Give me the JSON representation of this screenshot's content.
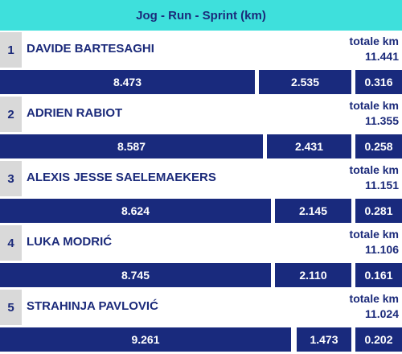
{
  "header": {
    "title": "Jog - Run - Sprint (km)"
  },
  "total_label": "totale km",
  "players": [
    {
      "rank": "1",
      "name": "DAVIDE BARTESAGHI",
      "total": "11.441",
      "jog": "8.473",
      "run": "2.535",
      "sprint": "0.316"
    },
    {
      "rank": "2",
      "name": "ADRIEN RABIOT",
      "total": "11.355",
      "jog": "8.587",
      "run": "2.431",
      "sprint": "0.258"
    },
    {
      "rank": "3",
      "name": "ALEXIS JESSE SAELEMAEKERS",
      "total": "11.151",
      "jog": "8.624",
      "run": "2.145",
      "sprint": "0.281"
    },
    {
      "rank": "4",
      "name": "LUKA MODRIĆ",
      "total": "11.106",
      "jog": "8.745",
      "run": "2.110",
      "sprint": "0.161"
    },
    {
      "rank": "5",
      "name": "STRAHINJA PAVLOVIĆ",
      "total": "11.024",
      "jog": "9.261",
      "run": "1.473",
      "sprint": "0.202"
    }
  ],
  "colors": {
    "header_bg": "#3ee0dc",
    "bar_bg": "#192a7d",
    "text": "#1b2a7a",
    "rank_bg": "#d9d9d9"
  }
}
